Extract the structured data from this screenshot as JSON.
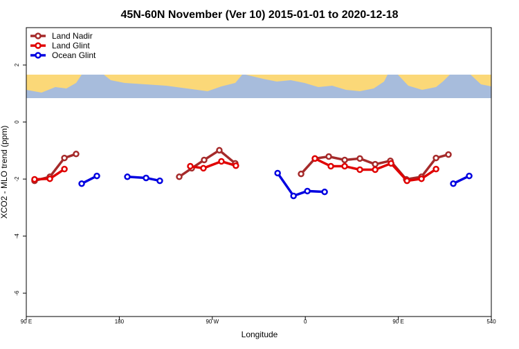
{
  "chart_data": {
    "type": "line",
    "title": "45N-60N November (Ver 10)   2015-01-01 to 2020-12-18",
    "x_label": "Longitude",
    "y_label": "XCO2 - MLO trend (ppm)",
    "xlim": [
      90,
      540
    ],
    "ylim": [
      -6.82,
      3.31
    ],
    "xticks": [
      {
        "value": 90,
        "label": "90 E"
      },
      180,
      {
        "value": 270,
        "label": "90 W"
      },
      {
        "value": 360,
        "label": "0"
      },
      {
        "value": 450,
        "label": "90 E"
      },
      540
    ],
    "yticks": [
      2,
      0,
      -2,
      -4,
      -6
    ],
    "legend": "top-left",
    "series": [
      {
        "name": "Land Nadir",
        "color": "#a52a2a",
        "x": [
          98,
          112.8,
          126.9,
          138.2,
          null,
          238,
          250.1,
          262.1,
          276.8,
          292.2,
          null,
          355.9,
          369.3,
          382.7,
          398.1,
          412.8,
          427.6,
          442.3,
          457.7,
          472.4,
          486.5,
          498.5
        ],
        "values": [
          -2.06,
          -1.92,
          -1.26,
          -1.12,
          null,
          -1.92,
          -1.62,
          -1.33,
          -0.99,
          -1.45,
          null,
          -1.82,
          -1.28,
          -1.21,
          -1.33,
          -1.28,
          -1.48,
          -1.36,
          -2.01,
          -1.92,
          -1.26,
          -1.14
        ]
      },
      {
        "name": "Land Glint",
        "color": "#e00000",
        "x": [
          98,
          112.8,
          126.9,
          null,
          248.7,
          261.4,
          278.8,
          292.8,
          null,
          369.3,
          384.7,
          398.1,
          412.8,
          427.6,
          443.0,
          458.4,
          472.4,
          486.5
        ],
        "values": [
          -2.01,
          -1.99,
          -1.65,
          null,
          -1.55,
          -1.62,
          -1.38,
          -1.53,
          null,
          -1.28,
          -1.55,
          -1.55,
          -1.67,
          -1.67,
          -1.45,
          -2.06,
          -1.99,
          -1.65
        ]
      },
      {
        "name": "Ocean Glint",
        "color": "#0000e0",
        "x": [
          143.6,
          158.3,
          null,
          187.8,
          205.9,
          219.2,
          null,
          333.2,
          348.6,
          362.0,
          378.7,
          null,
          503.2,
          518.6
        ],
        "values": [
          -2.16,
          -1.89,
          null,
          -1.92,
          -1.96,
          -2.06,
          null,
          -1.79,
          -2.59,
          -2.42,
          -2.45,
          null,
          -2.16,
          -1.89
        ]
      }
    ]
  }
}
